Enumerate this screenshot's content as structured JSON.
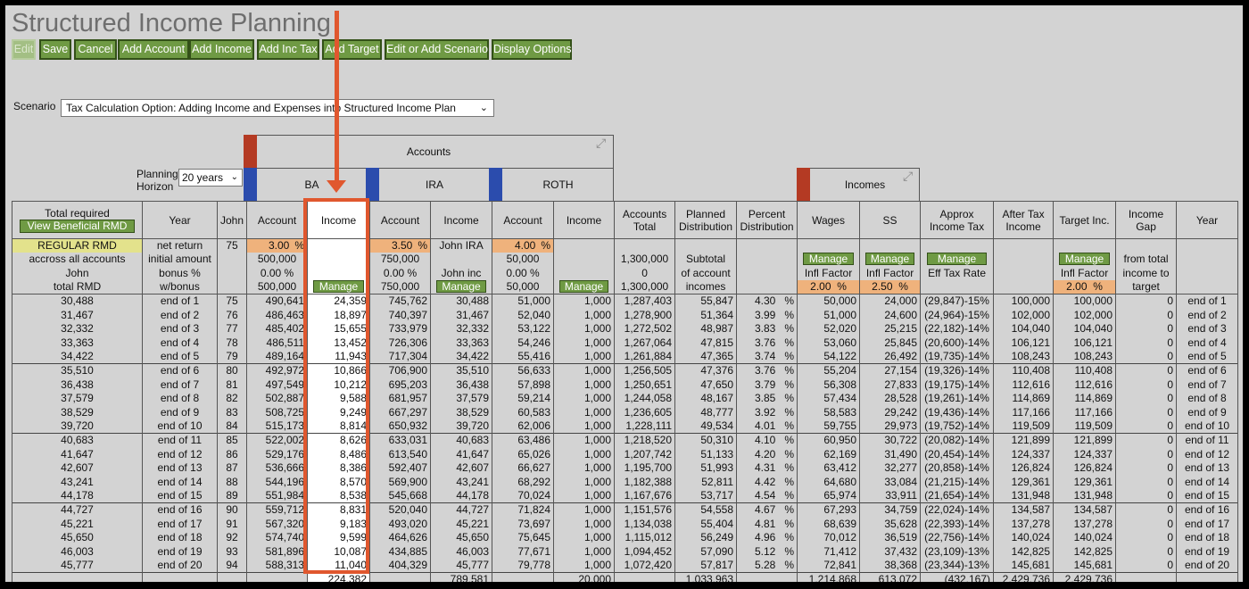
{
  "title": "Structured Income Planning",
  "toolbar": [
    {
      "label": "Edit",
      "disabled": true
    },
    {
      "label": "Save"
    },
    {
      "label": "Cancel"
    },
    {
      "label": "Add Account"
    },
    {
      "label": "Add Income"
    },
    {
      "label": "Add Inc Tax"
    },
    {
      "label": "Add Target"
    },
    {
      "label": "Edit or Add Scenario"
    },
    {
      "label": "Display Options"
    }
  ],
  "scenario": {
    "label": "Scenario",
    "value": "Tax Calculation Option: Adding Income and Expenses into Structured Income Plan"
  },
  "planning_horizon": {
    "label_line1": "Planning",
    "label_line2": "Horizon",
    "value": "20 years"
  },
  "groups": {
    "accounts": "Accounts",
    "incomes": "Incomes",
    "ba": "BA",
    "ira": "IRA",
    "roth": "ROTH"
  },
  "columns": {
    "total_required_line1": "Total required",
    "view_beneficial_rmd": "View Beneficial RMD",
    "year": "Year",
    "john": "John",
    "account": "Account",
    "income": "Income",
    "accounts_total": [
      "Accounts",
      "Total"
    ],
    "planned_distribution": [
      "Planned",
      "Distribution"
    ],
    "percent_distribution": [
      "Percent",
      "Distribution"
    ],
    "wages": "Wages",
    "ss": "SS",
    "approx_tax": [
      "Approx",
      "Income Tax"
    ],
    "after_tax": [
      "After Tax",
      "Income"
    ],
    "target_inc": "Target Inc.",
    "income_gap": [
      "Income",
      "Gap"
    ],
    "year2": "Year"
  },
  "subheader": {
    "col0": [
      "REGULAR RMD",
      "accross all accounts",
      "John",
      "total RMD"
    ],
    "col1": [
      "net return",
      "initial amount",
      "bonus %",
      "w/bonus"
    ],
    "john_age": "75",
    "ba": {
      "rate": "3.00",
      "initial": "500,000",
      "bonus": "0.00",
      "wbonus": "500,000",
      "manage": "Manage"
    },
    "ira": {
      "rate": "3.50",
      "initial": "750,000",
      "bonus": "0.00",
      "wbonus": "750,000",
      "inc_label": "John IRA",
      "inc_label2": "John inc",
      "manage": "Manage"
    },
    "roth": {
      "rate": "4.00",
      "initial": "50,000",
      "bonus": "0.00",
      "wbonus": "50,000",
      "manage": "Manage"
    },
    "pct": "%",
    "accounts_total": [
      "1,300,000",
      "0",
      "1,300,000"
    ],
    "planned": [
      "Subtotal",
      "of account",
      "incomes"
    ],
    "manage": "Manage",
    "infl_factor": "Infl Factor",
    "eff_tax_rate": "Eff Tax Rate",
    "wages_infl": "2.00",
    "ss_infl": "2.50",
    "target_infl": "2.00",
    "gap": [
      "from total",
      "income to",
      "target"
    ]
  },
  "rows": [
    [
      "30,488",
      "end of 1",
      "75",
      "490,641",
      "24,359",
      "745,762",
      "30,488",
      "51,000",
      "1,000",
      "1,287,403",
      "55,847",
      "4.30",
      "50,000",
      "24,000",
      "(29,847)-15%",
      "100,000",
      "100,000",
      "0",
      "end of 1"
    ],
    [
      "31,467",
      "end of 2",
      "76",
      "486,463",
      "18,897",
      "740,397",
      "31,467",
      "52,040",
      "1,000",
      "1,278,900",
      "51,364",
      "3.99",
      "51,000",
      "24,600",
      "(24,964)-15%",
      "102,000",
      "102,000",
      "0",
      "end of 2"
    ],
    [
      "32,332",
      "end of 3",
      "77",
      "485,402",
      "15,655",
      "733,979",
      "32,332",
      "53,122",
      "1,000",
      "1,272,502",
      "48,987",
      "3.83",
      "52,020",
      "25,215",
      "(22,182)-14%",
      "104,040",
      "104,040",
      "0",
      "end of 3"
    ],
    [
      "33,363",
      "end of 4",
      "78",
      "486,511",
      "13,452",
      "726,306",
      "33,363",
      "54,246",
      "1,000",
      "1,267,064",
      "47,815",
      "3.76",
      "53,060",
      "25,845",
      "(20,600)-14%",
      "106,121",
      "106,121",
      "0",
      "end of 4"
    ],
    [
      "34,422",
      "end of 5",
      "79",
      "489,164",
      "11,943",
      "717,304",
      "34,422",
      "55,416",
      "1,000",
      "1,261,884",
      "47,365",
      "3.74",
      "54,122",
      "26,492",
      "(19,735)-14%",
      "108,243",
      "108,243",
      "0",
      "end of 5"
    ],
    [
      "35,510",
      "end of 6",
      "80",
      "492,972",
      "10,866",
      "706,900",
      "35,510",
      "56,633",
      "1,000",
      "1,256,505",
      "47,376",
      "3.76",
      "55,204",
      "27,154",
      "(19,326)-14%",
      "110,408",
      "110,408",
      "0",
      "end of 6"
    ],
    [
      "36,438",
      "end of 7",
      "81",
      "497,549",
      "10,212",
      "695,203",
      "36,438",
      "57,898",
      "1,000",
      "1,250,651",
      "47,650",
      "3.79",
      "56,308",
      "27,833",
      "(19,175)-14%",
      "112,616",
      "112,616",
      "0",
      "end of 7"
    ],
    [
      "37,579",
      "end of 8",
      "82",
      "502,887",
      "9,588",
      "681,957",
      "37,579",
      "59,214",
      "1,000",
      "1,244,058",
      "48,167",
      "3.85",
      "57,434",
      "28,528",
      "(19,261)-14%",
      "114,869",
      "114,869",
      "0",
      "end of 8"
    ],
    [
      "38,529",
      "end of 9",
      "83",
      "508,725",
      "9,249",
      "667,297",
      "38,529",
      "60,583",
      "1,000",
      "1,236,605",
      "48,777",
      "3.92",
      "58,583",
      "29,242",
      "(19,436)-14%",
      "117,166",
      "117,166",
      "0",
      "end of 9"
    ],
    [
      "39,720",
      "end of 10",
      "84",
      "515,173",
      "8,814",
      "650,932",
      "39,720",
      "62,006",
      "1,000",
      "1,228,111",
      "49,534",
      "4.01",
      "59,755",
      "29,973",
      "(19,752)-14%",
      "119,509",
      "119,509",
      "0",
      "end of 10"
    ],
    [
      "40,683",
      "end of 11",
      "85",
      "522,002",
      "8,626",
      "633,031",
      "40,683",
      "63,486",
      "1,000",
      "1,218,520",
      "50,310",
      "4.10",
      "60,950",
      "30,722",
      "(20,082)-14%",
      "121,899",
      "121,899",
      "0",
      "end of 11"
    ],
    [
      "41,647",
      "end of 12",
      "86",
      "529,176",
      "8,486",
      "613,540",
      "41,647",
      "65,026",
      "1,000",
      "1,207,742",
      "51,133",
      "4.20",
      "62,169",
      "31,490",
      "(20,454)-14%",
      "124,337",
      "124,337",
      "0",
      "end of 12"
    ],
    [
      "42,607",
      "end of 13",
      "87",
      "536,666",
      "8,386",
      "592,407",
      "42,607",
      "66,627",
      "1,000",
      "1,195,700",
      "51,993",
      "4.31",
      "63,412",
      "32,277",
      "(20,858)-14%",
      "126,824",
      "126,824",
      "0",
      "end of 13"
    ],
    [
      "43,241",
      "end of 14",
      "88",
      "544,196",
      "8,570",
      "569,900",
      "43,241",
      "68,292",
      "1,000",
      "1,182,388",
      "52,811",
      "4.42",
      "64,680",
      "33,084",
      "(21,215)-14%",
      "129,361",
      "129,361",
      "0",
      "end of 14"
    ],
    [
      "44,178",
      "end of 15",
      "89",
      "551,984",
      "8,538",
      "545,668",
      "44,178",
      "70,024",
      "1,000",
      "1,167,676",
      "53,717",
      "4.54",
      "65,974",
      "33,911",
      "(21,654)-14%",
      "131,948",
      "131,948",
      "0",
      "end of 15"
    ],
    [
      "44,727",
      "end of 16",
      "90",
      "559,712",
      "8,831",
      "520,040",
      "44,727",
      "71,824",
      "1,000",
      "1,151,576",
      "54,558",
      "4.67",
      "67,293",
      "34,759",
      "(22,024)-14%",
      "134,587",
      "134,587",
      "0",
      "end of 16"
    ],
    [
      "45,221",
      "end of 17",
      "91",
      "567,320",
      "9,183",
      "493,020",
      "45,221",
      "73,697",
      "1,000",
      "1,134,038",
      "55,404",
      "4.81",
      "68,639",
      "35,628",
      "(22,393)-14%",
      "137,278",
      "137,278",
      "0",
      "end of 17"
    ],
    [
      "45,650",
      "end of 18",
      "92",
      "574,740",
      "9,599",
      "464,626",
      "45,650",
      "75,645",
      "1,000",
      "1,115,012",
      "56,249",
      "4.96",
      "70,012",
      "36,519",
      "(22,756)-14%",
      "140,024",
      "140,024",
      "0",
      "end of 18"
    ],
    [
      "46,003",
      "end of 19",
      "93",
      "581,896",
      "10,087",
      "434,885",
      "46,003",
      "77,671",
      "1,000",
      "1,094,452",
      "57,090",
      "5.12",
      "71,412",
      "37,432",
      "(23,109)-13%",
      "142,825",
      "142,825",
      "0",
      "end of 19"
    ],
    [
      "45,777",
      "end of 20",
      "94",
      "588,313",
      "11,040",
      "404,329",
      "45,777",
      "79,778",
      "1,000",
      "1,072,420",
      "57,817",
      "5.28",
      "72,841",
      "38,368",
      "(23,344)-13%",
      "145,681",
      "145,681",
      "0",
      "end of 20"
    ]
  ],
  "totals": [
    "",
    "",
    "",
    "",
    "224,382",
    "",
    "789,581",
    "",
    "20,000",
    "",
    "1,033,963",
    "",
    "1,214,868",
    "613,072",
    "(432,167)",
    "2,429,736",
    "2,429,736",
    "",
    ""
  ]
}
